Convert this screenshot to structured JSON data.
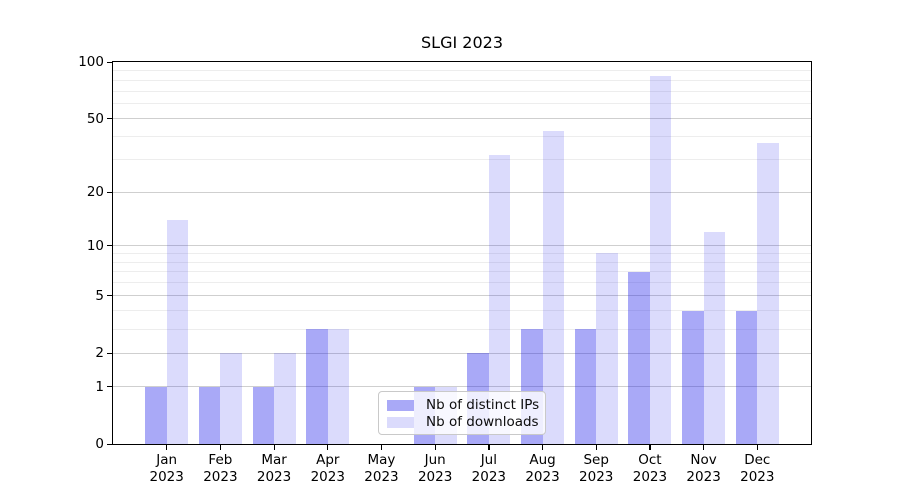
{
  "title": "SLGI 2023",
  "colors": {
    "ips_bar": "rgba(28,28,235,0.38)",
    "downloads_bar": "rgba(28,28,235,0.16)",
    "grid_major": "#cfcfcf",
    "grid_minor": "#ededed",
    "axis": "#000000",
    "text": "#000000",
    "legend_border": "#c9c9c9"
  },
  "legend": {
    "items": [
      {
        "label": "Nb of distinct IPs",
        "series": "ips"
      },
      {
        "label": "Nb of downloads",
        "series": "downloads"
      }
    ]
  },
  "chart_data": {
    "type": "bar",
    "title": "SLGI 2023",
    "categories": [
      "Jan 2023",
      "Feb 2023",
      "Mar 2023",
      "Apr 2023",
      "May 2023",
      "Jun 2023",
      "Jul 2023",
      "Aug 2023",
      "Sep 2023",
      "Oct 2023",
      "Nov 2023",
      "Dec 2023"
    ],
    "series": [
      {
        "name": "Nb of distinct IPs",
        "values": [
          1,
          1,
          1,
          3,
          0,
          1,
          2,
          3,
          3,
          7,
          4,
          4
        ]
      },
      {
        "name": "Nb of downloads",
        "values": [
          14,
          2,
          2,
          3,
          0,
          1,
          32,
          43,
          9,
          84,
          12,
          37
        ]
      }
    ],
    "xlabel": "",
    "ylabel": "",
    "yscale": "log1p",
    "ylim": [
      0,
      100
    ],
    "yticks": [
      0,
      1,
      2,
      5,
      10,
      20,
      50,
      100
    ],
    "yticks_minor": [
      3,
      4,
      6,
      7,
      8,
      9,
      30,
      40,
      60,
      70,
      80,
      90
    ],
    "grid": "horizontal",
    "legend_position": "lower center"
  }
}
